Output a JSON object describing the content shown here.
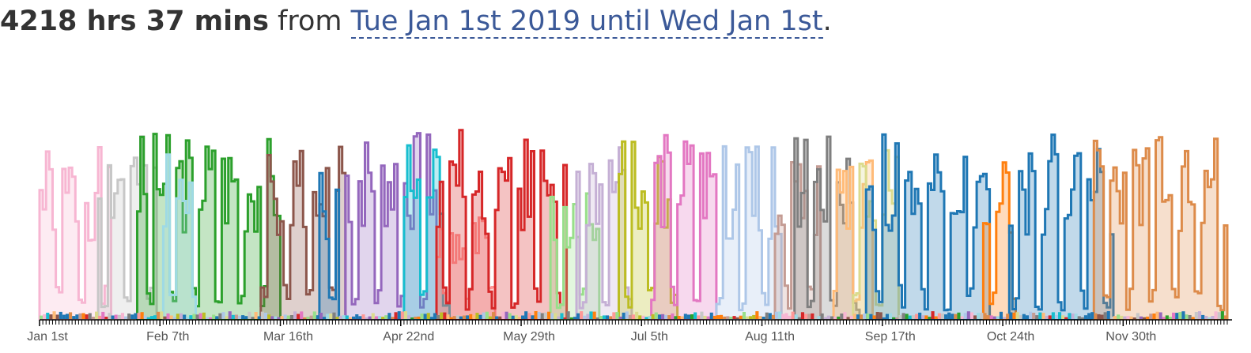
{
  "header": {
    "total": "4218 hrs 37 mins",
    "from_word": "from",
    "range_label": "Tue Jan 1st 2019 until Wed Jan 1st",
    "period": "."
  },
  "chart_data": {
    "type": "area",
    "x_tick_labels": [
      "Jan 1st",
      "Feb 7th",
      "Mar 16th",
      "Apr 22nd",
      "May 29th",
      "Jul 5th",
      "Aug 11th",
      "Sep 17th",
      "Oct 24th",
      "Nov 30th"
    ],
    "days": 365,
    "y_max": 1.0,
    "grid": false,
    "series": [
      {
        "color": "#f7b6d2",
        "start": 0,
        "end": 22,
        "seed": 1,
        "level": 0.8
      },
      {
        "color": "#c7c7c7",
        "start": 18,
        "end": 36,
        "seed": 2,
        "level": 0.85
      },
      {
        "color": "#2ca02c",
        "start": 30,
        "end": 74,
        "seed": 3,
        "level": 0.88
      },
      {
        "color": "#9edae5",
        "start": 38,
        "end": 48,
        "seed": 4,
        "level": 0.9
      },
      {
        "color": "#8c564b",
        "start": 68,
        "end": 94,
        "seed": 5,
        "level": 0.85
      },
      {
        "color": "#1f77b4",
        "start": 86,
        "end": 92,
        "seed": 6,
        "level": 0.8
      },
      {
        "color": "#9467bd",
        "start": 94,
        "end": 122,
        "seed": 7,
        "level": 0.88
      },
      {
        "color": "#17becf",
        "start": 112,
        "end": 126,
        "seed": 8,
        "level": 0.85
      },
      {
        "color": "#ff9896",
        "start": 122,
        "end": 140,
        "seed": 9,
        "level": 0.5
      },
      {
        "color": "#d62728",
        "start": 122,
        "end": 162,
        "seed": 10,
        "level": 0.88
      },
      {
        "color": "#98df8a",
        "start": 157,
        "end": 172,
        "seed": 11,
        "level": 0.6
      },
      {
        "color": "#c5b0d5",
        "start": 165,
        "end": 182,
        "seed": 12,
        "level": 0.8
      },
      {
        "color": "#bcbd22",
        "start": 178,
        "end": 196,
        "seed": 13,
        "level": 0.88
      },
      {
        "color": "#e377c2",
        "start": 188,
        "end": 208,
        "seed": 14,
        "level": 0.88
      },
      {
        "color": "#aec7e8",
        "start": 208,
        "end": 228,
        "seed": 15,
        "level": 0.82
      },
      {
        "color": "#c49c94",
        "start": 226,
        "end": 240,
        "seed": 16,
        "level": 0.8
      },
      {
        "color": "#7f7f7f",
        "start": 232,
        "end": 252,
        "seed": 17,
        "level": 0.88
      },
      {
        "color": "#ffbb78",
        "start": 244,
        "end": 256,
        "seed": 18,
        "level": 0.75
      },
      {
        "color": "#dbdb8d",
        "start": 250,
        "end": 264,
        "seed": 19,
        "level": 0.8
      },
      {
        "color": "#1f77b4",
        "start": 254,
        "end": 292,
        "seed": 20,
        "level": 0.88
      },
      {
        "color": "#ff7f0e",
        "start": 290,
        "end": 300,
        "seed": 21,
        "level": 0.75
      },
      {
        "color": "#1f77b4",
        "start": 298,
        "end": 330,
        "seed": 22,
        "level": 0.86
      },
      {
        "color": "#dd8b4a",
        "start": 324,
        "end": 365,
        "seed": 23,
        "level": 0.86
      }
    ]
  }
}
